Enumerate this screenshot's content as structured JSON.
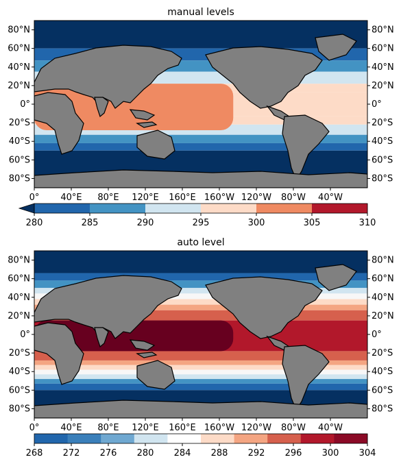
{
  "chart_data": [
    {
      "type": "heatmap",
      "title": "manual levels",
      "x_ticks": [
        "0°",
        "40°E",
        "80°E",
        "120°E",
        "160°E",
        "160°W",
        "120°W",
        "80°W",
        "40°W"
      ],
      "y_ticks_left": [
        "80°N",
        "60°N",
        "40°N",
        "20°N",
        "0°",
        "20°S",
        "40°S",
        "60°S",
        "80°S"
      ],
      "y_ticks_right": [
        "80°N",
        "60°N",
        "40°N",
        "20°N",
        "0°",
        "20°S",
        "40°S",
        "60°S",
        "80°S"
      ],
      "lon_range": [
        0,
        360
      ],
      "lat_range": [
        -90,
        90
      ],
      "land_color": "#808080",
      "bands": [
        {
          "lat_range": [
            60,
            90
          ],
          "color": "#053061"
        },
        {
          "lat_range": [
            47,
            60
          ],
          "color": "#2166ac"
        },
        {
          "lat_range": [
            35,
            47
          ],
          "color": "#4393c3"
        },
        {
          "lat_range": [
            22,
            35
          ],
          "color": "#d1e5f0"
        },
        {
          "lat_range": [
            13,
            22
          ],
          "color": "#fddbc7"
        },
        {
          "lat_range": [
            -13,
            13
          ],
          "color": "#fddbc7"
        },
        {
          "lat_range": [
            -22,
            -13
          ],
          "color": "#fddbc7"
        },
        {
          "lat_range": [
            -33,
            -22
          ],
          "color": "#d1e5f0"
        },
        {
          "lat_range": [
            -42,
            -33
          ],
          "color": "#4393c3"
        },
        {
          "lat_range": [
            -50,
            -42
          ],
          "color": "#2166ac"
        },
        {
          "lat_range": [
            -90,
            -50
          ],
          "color": "#053061"
        }
      ],
      "warm_pool": {
        "lat_range": [
          -28,
          22
        ],
        "lon_range": [
          0,
          215
        ],
        "color": "#ef8a62"
      },
      "colorbar": {
        "ticks": [
          "280",
          "285",
          "290",
          "295",
          "300",
          "305",
          "310"
        ],
        "colors": [
          "#2166ac",
          "#4393c3",
          "#d1e5f0",
          "#fddbc7",
          "#ef8a62",
          "#b2182b"
        ],
        "extend": "min",
        "extend_color": "#053061"
      }
    },
    {
      "type": "heatmap",
      "title": "auto level",
      "x_ticks": [
        "0°",
        "40°E",
        "80°E",
        "120°E",
        "160°E",
        "160°W",
        "120°W",
        "80°W",
        "40°W"
      ],
      "y_ticks_left": [
        "80°N",
        "60°N",
        "40°N",
        "20°N",
        "0°",
        "20°S",
        "40°S",
        "60°S",
        "80°S"
      ],
      "y_ticks_right": [
        "80°N",
        "60°N",
        "40°N",
        "20°N",
        "0°",
        "20°S",
        "40°S",
        "60°S",
        "80°S"
      ],
      "lon_range": [
        0,
        360
      ],
      "lat_range": [
        -90,
        90
      ],
      "land_color": "#808080",
      "bands": [
        {
          "lat_range": [
            66,
            90
          ],
          "color": "#053061"
        },
        {
          "lat_range": [
            58,
            66
          ],
          "color": "#2166ac"
        },
        {
          "lat_range": [
            50,
            58
          ],
          "color": "#4393c3"
        },
        {
          "lat_range": [
            44,
            50
          ],
          "color": "#d1e5f0"
        },
        {
          "lat_range": [
            38,
            44
          ],
          "color": "#f7f7f7"
        },
        {
          "lat_range": [
            32,
            38
          ],
          "color": "#fddbc7"
        },
        {
          "lat_range": [
            26,
            32
          ],
          "color": "#f4a582"
        },
        {
          "lat_range": [
            15,
            26
          ],
          "color": "#d6604d"
        },
        {
          "lat_range": [
            -18,
            15
          ],
          "color": "#b2182b"
        },
        {
          "lat_range": [
            -28,
            -18
          ],
          "color": "#d6604d"
        },
        {
          "lat_range": [
            -33,
            -28
          ],
          "color": "#f4a582"
        },
        {
          "lat_range": [
            -38,
            -33
          ],
          "color": "#fddbc7"
        },
        {
          "lat_range": [
            -43,
            -38
          ],
          "color": "#f7f7f7"
        },
        {
          "lat_range": [
            -48,
            -43
          ],
          "color": "#d1e5f0"
        },
        {
          "lat_range": [
            -53,
            -48
          ],
          "color": "#4393c3"
        },
        {
          "lat_range": [
            -60,
            -53
          ],
          "color": "#2166ac"
        },
        {
          "lat_range": [
            -90,
            -60
          ],
          "color": "#053061"
        }
      ],
      "warm_pool": {
        "lat_range": [
          -18,
          15
        ],
        "lon_range": [
          0,
          215
        ],
        "color": "#67001f"
      },
      "colorbar": {
        "ticks": [
          "268",
          "272",
          "276",
          "280",
          "284",
          "288",
          "292",
          "296",
          "300",
          "304"
        ],
        "colors": [
          "#2166ac",
          "#3a7fba",
          "#6fa8d1",
          "#d1e5f0",
          "#ffffff",
          "#fddbc7",
          "#f4a582",
          "#d6604d",
          "#b2182b",
          "#8b0a26"
        ],
        "extend": "none"
      }
    }
  ]
}
